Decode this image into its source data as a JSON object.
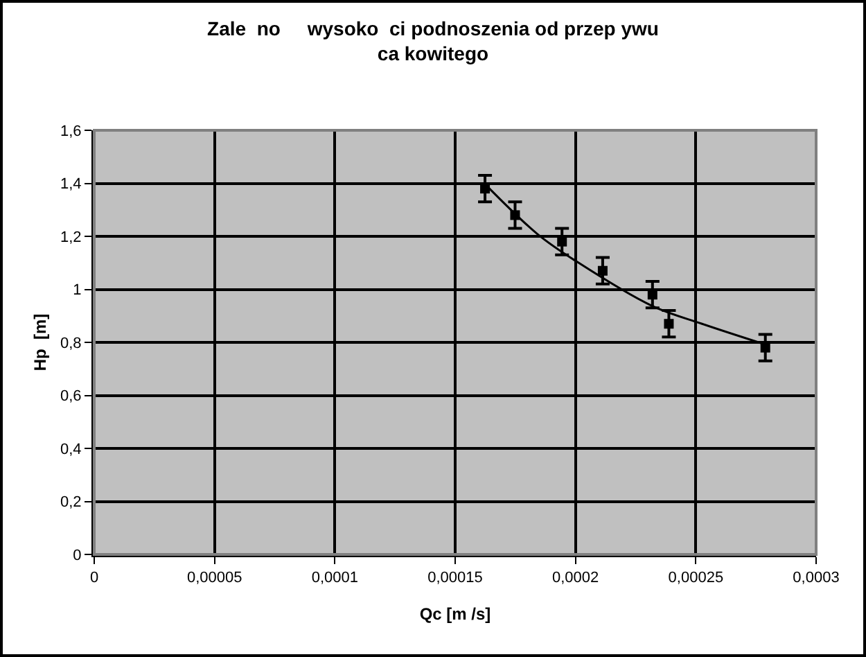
{
  "chart_data": {
    "type": "scatter",
    "title": "Zale  no     wysoko  ci podnoszenia od przep ywu\nca kowitego",
    "xlabel": "Qc [m /s]",
    "ylabel": "Hp  [m]",
    "x": [
      0.0001624,
      0.0001749,
      0.0001944,
      0.0002113,
      0.000232,
      0.0002388,
      0.0002789
    ],
    "series": [
      {
        "color": "#000000",
        "values": [
          1.38,
          1.28,
          1.18,
          1.07,
          0.98,
          0.87,
          0.78
        ],
        "errors": [
          0.05,
          0.05,
          0.05,
          0.05,
          0.05,
          0.05,
          0.05
        ],
        "marker": "square"
      },
      {
        "type": "line",
        "color": "#000000",
        "x": [
          0.0001624,
          0.0001844,
          0.0002008,
          0.0002315,
          0.0002526,
          0.0002789
        ],
        "values": [
          1.397,
          1.207,
          1.103,
          0.939,
          0.87,
          0.792
        ],
        "marker": "none",
        "line_style": "solid"
      }
    ],
    "xlim": [
      0,
      0.0003
    ],
    "xticks": [
      0,
      {
        "value": 5e-05,
        "label": "0,00005"
      },
      {
        "value": 0.0001,
        "label": "0,0001"
      },
      {
        "value": 0.00015,
        "label": "0,00015"
      },
      {
        "value": 0.0002,
        "label": "0,0002"
      },
      {
        "value": 0.00025,
        "label": "0,00025"
      },
      {
        "value": 0.0003,
        "label": "0,0003"
      }
    ],
    "ylim": [
      0,
      1.6
    ],
    "yticks": [
      0,
      {
        "value": 0.2,
        "label": "0,2"
      },
      {
        "value": 0.4,
        "label": "0,4"
      },
      {
        "value": 0.6,
        "label": "0,6"
      },
      {
        "value": 0.8,
        "label": "0,8"
      },
      1,
      {
        "value": 1.2,
        "label": "1,2"
      },
      {
        "value": 1.4,
        "label": "1,4"
      },
      {
        "value": 1.6,
        "label": "1,6"
      }
    ],
    "grid": true
  }
}
